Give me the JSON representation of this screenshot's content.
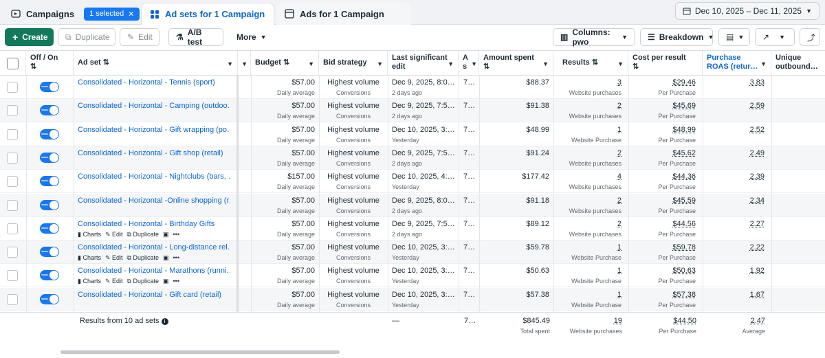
{
  "tabs": {
    "campaigns": "Campaigns",
    "selected": "1 selected",
    "adsets": "Ad sets for 1 Campaign",
    "ads": "Ads for 1 Campaign"
  },
  "date_range": "Dec 10, 2025 – Dec 11, 2025",
  "toolbar": {
    "create": "Create",
    "duplicate": "Duplicate",
    "edit": "Edit",
    "ab_test": "A/B test",
    "more": "More",
    "columns": "Columns: pwo",
    "breakdown": "Breakdown"
  },
  "columns": {
    "off_on": "Off / On",
    "ad_set": "Ad set",
    "budget": "Budget",
    "bid_strategy": "Bid strategy",
    "last_edit": "Last significant edit",
    "attribution": "A s",
    "amount_spent": "Amount spent",
    "results": "Results",
    "cost_per_result": "Cost per result",
    "roas": "Purchase ROAS (retur…",
    "unique": "Unique outbound…"
  },
  "row_actions": {
    "charts": "Charts",
    "edit": "Edit",
    "duplicate": "Duplicate"
  },
  "rows": [
    {
      "name": "Consolidated - Horizontal - Tennis (sport)",
      "budget": "$57.00",
      "budget_sub": "Daily average",
      "bid": "Highest volume",
      "bid_sub": "Conversions",
      "edit": "Dec 9, 2025, 8:0…",
      "edit_sub": "2 days ago",
      "attr": "7…",
      "spent": "$88.37",
      "results": "3",
      "results_sub": "Website purchases",
      "cpr": "$29.46",
      "cpr_sub": "Per Purchase",
      "roas": "3.83",
      "actions": false
    },
    {
      "name": "Consolidated - Horizontal - Camping (outdoo…",
      "budget": "$57.00",
      "budget_sub": "Daily average",
      "bid": "Highest volume",
      "bid_sub": "Conversions",
      "edit": "Dec 9, 2025, 7:5…",
      "edit_sub": "2 days ago",
      "attr": "7…",
      "spent": "$91.38",
      "results": "2",
      "results_sub": "Website purchases",
      "cpr": "$45.69",
      "cpr_sub": "Per Purchase",
      "roas": "2.59",
      "actions": false
    },
    {
      "name": "Consolidated - Horizontal - Gift wrapping (po…",
      "budget": "$57.00",
      "budget_sub": "Daily average",
      "bid": "Highest volume",
      "bid_sub": "Conversions",
      "edit": "Dec 10, 2025, 3:…",
      "edit_sub": "Yesterday",
      "attr": "7…",
      "spent": "$48.99",
      "results": "1",
      "results_sub": "Website Purchase",
      "cpr": "$48.99",
      "cpr_sub": "Per Purchase",
      "roas": "2.52",
      "actions": false
    },
    {
      "name": "Consolidated - Horizontal - Gift shop (retail)",
      "budget": "$57.00",
      "budget_sub": "Daily average",
      "bid": "Highest volume",
      "bid_sub": "Conversions",
      "edit": "Dec 9, 2025, 7:5…",
      "edit_sub": "2 days ago",
      "attr": "7…",
      "spent": "$91.24",
      "results": "2",
      "results_sub": "Website purchases",
      "cpr": "$45.62",
      "cpr_sub": "Per Purchase",
      "roas": "2.49",
      "actions": false
    },
    {
      "name": "Consolidated - Horizontal - Nightclubs (bars, …",
      "budget": "$157.00",
      "budget_sub": "Daily average",
      "bid": "Highest volume",
      "bid_sub": "Conversions",
      "edit": "Dec 10, 2025, 4:…",
      "edit_sub": "Yesterday",
      "attr": "7…",
      "spent": "$177.42",
      "results": "4",
      "results_sub": "Website purchases",
      "cpr": "$44.36",
      "cpr_sub": "Per Purchase",
      "roas": "2.39",
      "actions": false
    },
    {
      "name": "Consolidated - Horizontal -Online shopping (r…",
      "budget": "$57.00",
      "budget_sub": "Daily average",
      "bid": "Highest volume",
      "bid_sub": "Conversions",
      "edit": "Dec 9, 2025, 8:0…",
      "edit_sub": "2 days ago",
      "attr": "7…",
      "spent": "$91.18",
      "results": "2",
      "results_sub": "Website purchases",
      "cpr": "$45.59",
      "cpr_sub": "Per Purchase",
      "roas": "2.34",
      "actions": false
    },
    {
      "name": "Consolidated - Horizontal - Birthday Gifts",
      "budget": "$57.00",
      "budget_sub": "Daily average",
      "bid": "Highest volume",
      "bid_sub": "Conversions",
      "edit": "Dec 9, 2025, 7:5…",
      "edit_sub": "2 days ago",
      "attr": "7…",
      "spent": "$89.12",
      "results": "2",
      "results_sub": "Website purchases",
      "cpr": "$44.56",
      "cpr_sub": "Per Purchase",
      "roas": "2.27",
      "actions": true
    },
    {
      "name": "Consolidated - Horizontal - Long-distance rel…",
      "budget": "$57.00",
      "budget_sub": "Daily average",
      "bid": "Highest volume",
      "bid_sub": "Conversions",
      "edit": "Dec 10, 2025, 3:…",
      "edit_sub": "Yesterday",
      "attr": "7…",
      "spent": "$59.78",
      "results": "1",
      "results_sub": "Website Purchase",
      "cpr": "$59.78",
      "cpr_sub": "Per Purchase",
      "roas": "2.22",
      "actions": true
    },
    {
      "name": "Consolidated - Horizontal - Marathons (runni…",
      "budget": "$57.00",
      "budget_sub": "Daily average",
      "bid": "Highest volume",
      "bid_sub": "Conversions",
      "edit": "Dec 10, 2025, 3:…",
      "edit_sub": "Yesterday",
      "attr": "7…",
      "spent": "$50.63",
      "results": "1",
      "results_sub": "Website Purchase",
      "cpr": "$50.63",
      "cpr_sub": "Per Purchase",
      "roas": "1.92",
      "actions": true
    },
    {
      "name": "Consolidated - Horizontal - Gift card (retail)",
      "budget": "$57.00",
      "budget_sub": "Daily average",
      "bid": "Highest volume",
      "bid_sub": "Conversions",
      "edit": "Dec 10, 2025, 3:…",
      "edit_sub": "Yesterday",
      "attr": "7…",
      "spent": "$57.38",
      "results": "1",
      "results_sub": "Website Purchase",
      "cpr": "$57.38",
      "cpr_sub": "Per Purchase",
      "roas": "1.67",
      "actions": false
    }
  ],
  "footer": {
    "label": "Results from 10 ad sets",
    "last_edit": "—",
    "attr": "7…",
    "spent": "$845.49",
    "spent_sub": "Total spent",
    "results": "19",
    "results_sub": "Website purchases",
    "cpr": "$44.50",
    "cpr_sub": "Per Purchase",
    "roas": "2.47",
    "roas_sub": "Average"
  },
  "colors": {
    "brand": "#1877f2",
    "create": "#13795b",
    "link": "#0a66d8"
  }
}
